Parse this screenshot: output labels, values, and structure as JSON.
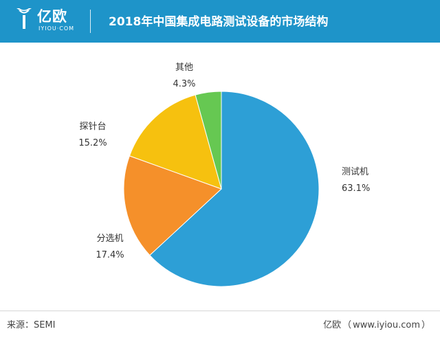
{
  "header": {
    "logo_name": "亿欧",
    "logo_sub": "IYIOU·COM",
    "title": "2018年中国集成电路测试设备的市场结构",
    "background": "#1e94c9"
  },
  "chart_data": {
    "type": "pie",
    "title": "2018年中国集成电路测试设备的市场结构",
    "start": "12 o'clock",
    "direction": "clockwise",
    "slices": [
      {
        "label": "测试机",
        "value": 63.1,
        "value_label": "63.1%",
        "color": "#2d9fd6"
      },
      {
        "label": "分选机",
        "value": 17.4,
        "value_label": "17.4%",
        "color": "#f5902a"
      },
      {
        "label": "探针台",
        "value": 15.2,
        "value_label": "15.2%",
        "color": "#f6c10f"
      },
      {
        "label": "其他",
        "value": 4.3,
        "value_label": "4.3%",
        "color": "#66c852"
      }
    ]
  },
  "footer": {
    "source": "来源：SEMI",
    "brand": "亿欧",
    "site_open": "（",
    "site": "www.iyiou.com",
    "site_close": "）"
  }
}
